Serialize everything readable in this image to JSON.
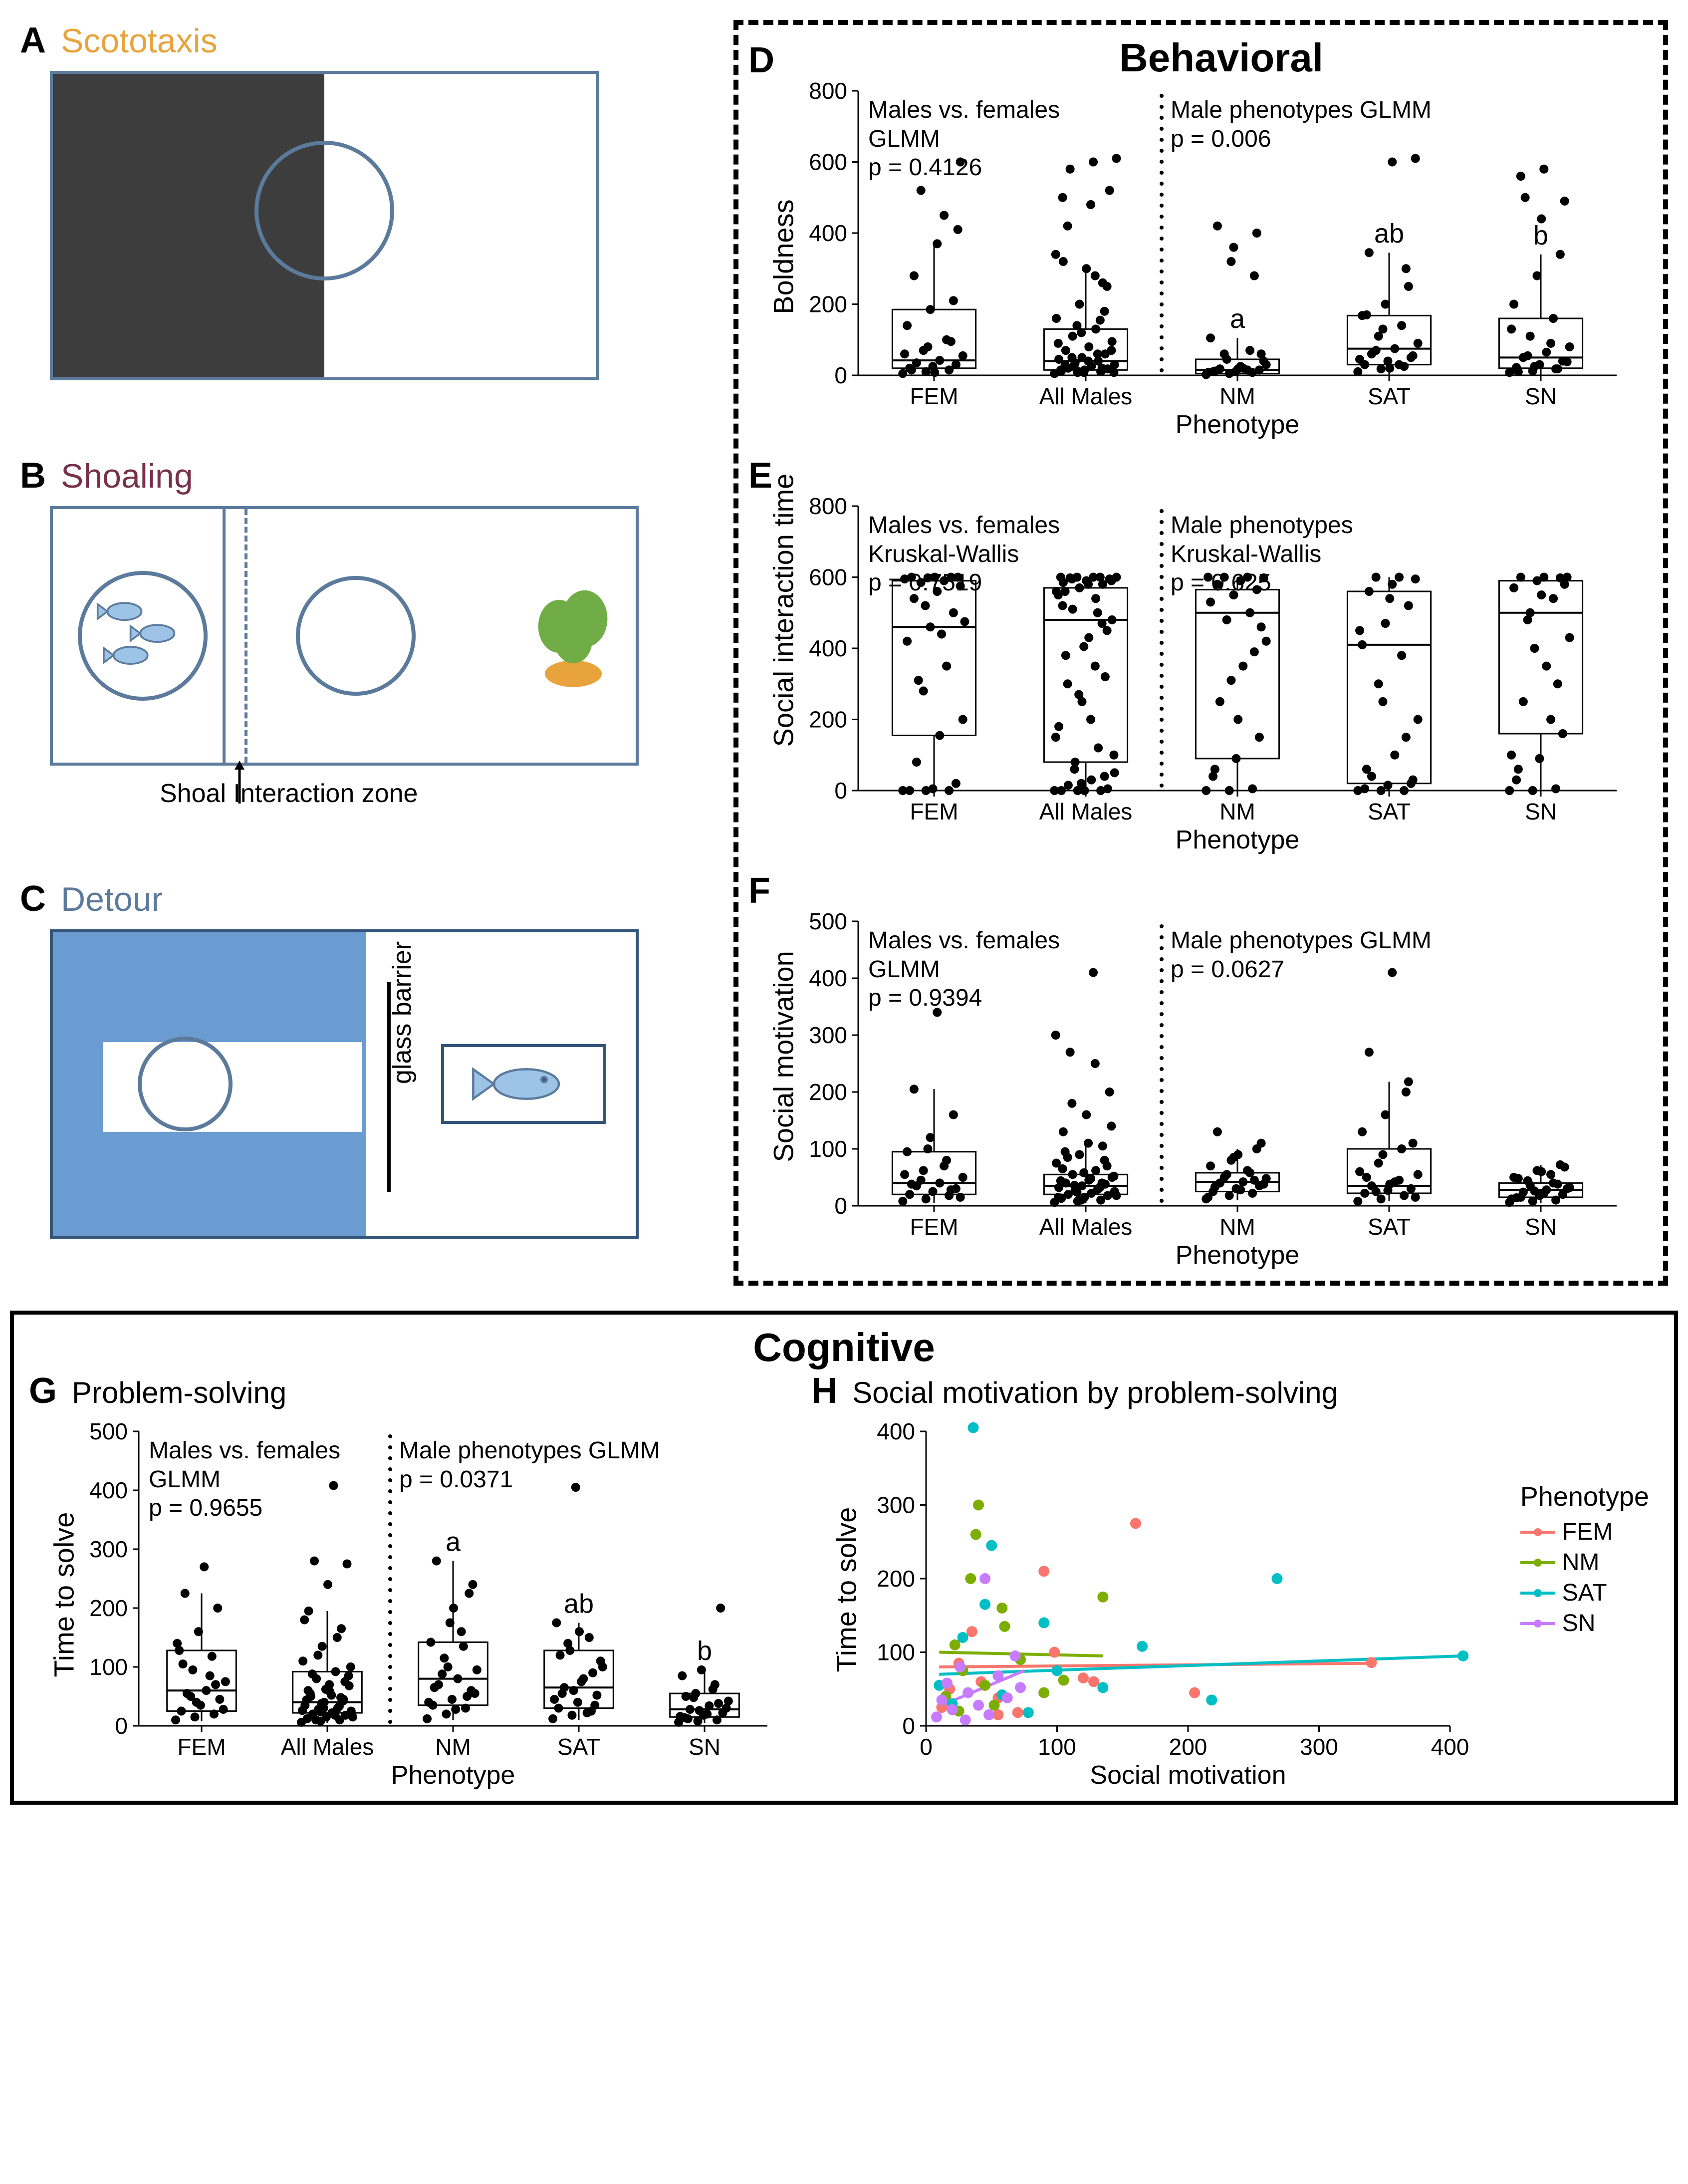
{
  "panels": {
    "A": {
      "label": "A",
      "title": "Scototaxis",
      "title_color": "#e8a33d"
    },
    "B": {
      "label": "B",
      "title": "Shoaling",
      "title_color": "#763049",
      "caption": "Shoal Interaction zone"
    },
    "C": {
      "label": "C",
      "title": "Detour",
      "title_color": "#5b7a9c",
      "barrier_label": "glass barrier"
    },
    "D": {
      "label": "D"
    },
    "E": {
      "label": "E"
    },
    "F": {
      "label": "F"
    },
    "G": {
      "label": "G",
      "title": "Problem-solving"
    },
    "H": {
      "label": "H",
      "title": "Social motivation by problem-solving"
    }
  },
  "sections": {
    "behavioral": "Behavioral",
    "cognitive": "Cognitive"
  },
  "common": {
    "xlabel": "Phenotype",
    "categories5": [
      "FEM",
      "All Males",
      "NM",
      "SAT",
      "SN"
    ]
  },
  "colors": {
    "box_stroke": "#000000",
    "point_fill": "#000000",
    "divider": "#000000",
    "diagram_border": "#5b7a9c",
    "diagram_fill_dark": "#3d3d3d",
    "diagram_fill_blue": "#6a9bd1",
    "background": "#ffffff",
    "grid": "#e6e6e6",
    "phenotypes": {
      "FEM": "#f8766d",
      "NM": "#7cae00",
      "SAT": "#00bfc4",
      "SN": "#c77cff"
    }
  },
  "chartD": {
    "ylabel": "Boldness",
    "ylim": [
      0,
      800
    ],
    "ytick_step": 200,
    "stats_left": "Males vs. females\nGLMM\np = 0.4126",
    "stats_right": "Male phenotypes GLMM\np = 0.006",
    "sig_letters": {
      "NM": "a",
      "SAT": "ab",
      "SN": "b"
    },
    "boxes": [
      {
        "cat": "FEM",
        "q1": 20,
        "median": 42,
        "q3": 185,
        "wmin": 0,
        "wmax": 370
      },
      {
        "cat": "All Males",
        "q1": 15,
        "median": 40,
        "q3": 130,
        "wmin": 0,
        "wmax": 300
      },
      {
        "cat": "NM",
        "q1": 5,
        "median": 15,
        "q3": 45,
        "wmin": 0,
        "wmax": 105
      },
      {
        "cat": "SAT",
        "q1": 30,
        "median": 75,
        "q3": 168,
        "wmin": 0,
        "wmax": 345
      },
      {
        "cat": "SN",
        "q1": 20,
        "median": 50,
        "q3": 160,
        "wmin": 0,
        "wmax": 340
      }
    ],
    "points": {
      "FEM": [
        5,
        10,
        15,
        20,
        25,
        30,
        35,
        42,
        55,
        70,
        100,
        140,
        185,
        210,
        280,
        370,
        600,
        520,
        450,
        60,
        80,
        95,
        15,
        8,
        410
      ],
      "All Males": [
        5,
        8,
        10,
        12,
        15,
        18,
        20,
        25,
        30,
        35,
        40,
        45,
        50,
        60,
        70,
        80,
        95,
        110,
        130,
        160,
        200,
        260,
        320,
        300,
        520,
        580,
        600,
        610,
        140,
        155,
        15,
        8,
        250,
        420,
        480,
        8,
        30,
        60,
        90,
        120,
        180,
        30,
        40,
        70,
        50,
        280,
        340,
        10,
        20,
        500
      ],
      "NM": [
        2,
        5,
        8,
        10,
        12,
        15,
        18,
        20,
        30,
        45,
        70,
        105,
        360,
        400,
        420,
        25,
        40,
        60,
        15,
        8,
        320,
        280,
        12,
        18,
        60
      ],
      "SAT": [
        10,
        18,
        25,
        30,
        40,
        50,
        60,
        75,
        90,
        110,
        140,
        168,
        200,
        250,
        345,
        600,
        610,
        70,
        30,
        45,
        130,
        300,
        170,
        20,
        55
      ],
      "SN": [
        8,
        12,
        18,
        22,
        30,
        40,
        50,
        65,
        80,
        110,
        160,
        200,
        280,
        340,
        560,
        580,
        38,
        55,
        90,
        130,
        25,
        18,
        10,
        440,
        490,
        500
      ]
    }
  },
  "chartE": {
    "ylabel": "Social interaction time",
    "ylim": [
      0,
      800
    ],
    "ytick_step": 200,
    "stats_left": "Males vs. females\nKruskal-Wallis\np = 0.7519",
    "stats_right": "Male phenotypes\nKruskal-Wallis\np = 0.625",
    "boxes": [
      {
        "cat": "FEM",
        "q1": 155,
        "median": 460,
        "q3": 590,
        "wmin": 0,
        "wmax": 600
      },
      {
        "cat": "All Males",
        "q1": 80,
        "median": 480,
        "q3": 570,
        "wmin": 0,
        "wmax": 600
      },
      {
        "cat": "NM",
        "q1": 90,
        "median": 500,
        "q3": 565,
        "wmin": 0,
        "wmax": 600
      },
      {
        "cat": "SAT",
        "q1": 20,
        "median": 410,
        "q3": 560,
        "wmin": 0,
        "wmax": 600
      },
      {
        "cat": "SN",
        "q1": 160,
        "median": 500,
        "q3": 590,
        "wmin": 0,
        "wmax": 600
      }
    ],
    "points": {
      "FEM": [
        0,
        0,
        0,
        0,
        5,
        20,
        80,
        155,
        200,
        280,
        350,
        420,
        460,
        500,
        540,
        560,
        575,
        585,
        590,
        595,
        598,
        600,
        600,
        600,
        600,
        310,
        440,
        475,
        520
      ],
      "All Males": [
        0,
        0,
        0,
        0,
        0,
        5,
        15,
        30,
        50,
        80,
        120,
        180,
        250,
        320,
        380,
        430,
        480,
        510,
        540,
        560,
        570,
        580,
        585,
        590,
        595,
        598,
        600,
        600,
        600,
        600,
        600,
        405,
        450,
        300,
        200,
        100,
        60,
        500,
        550,
        20,
        40,
        560,
        580,
        590,
        595,
        350,
        150,
        270,
        470,
        520
      ],
      "NM": [
        0,
        0,
        5,
        40,
        90,
        150,
        250,
        350,
        420,
        480,
        500,
        530,
        550,
        565,
        580,
        590,
        598,
        600,
        600,
        600,
        310,
        390,
        60,
        200,
        460
      ],
      "SAT": [
        0,
        0,
        0,
        5,
        15,
        20,
        40,
        100,
        200,
        300,
        380,
        410,
        470,
        520,
        560,
        580,
        595,
        600,
        600,
        450,
        250,
        150,
        60,
        540,
        30
      ],
      "SN": [
        0,
        0,
        5,
        30,
        90,
        160,
        250,
        350,
        430,
        500,
        540,
        570,
        590,
        598,
        600,
        600,
        600,
        480,
        200,
        100,
        400,
        300,
        60,
        550,
        580
      ]
    }
  },
  "chartF": {
    "ylabel": "Social motivation",
    "ylim": [
      0,
      500
    ],
    "ytick_step": 100,
    "stats_left": "Males vs. females\nGLMM\np = 0.9394",
    "stats_right": "Male phenotypes GLMM\np = 0.0627",
    "boxes": [
      {
        "cat": "FEM",
        "q1": 20,
        "median": 40,
        "q3": 95,
        "wmin": 5,
        "wmax": 205
      },
      {
        "cat": "All Males",
        "q1": 20,
        "median": 35,
        "q3": 55,
        "wmin": 5,
        "wmax": 105
      },
      {
        "cat": "NM",
        "q1": 25,
        "median": 42,
        "q3": 58,
        "wmin": 10,
        "wmax": 100
      },
      {
        "cat": "SAT",
        "q1": 22,
        "median": 35,
        "q3": 100,
        "wmin": 8,
        "wmax": 218
      },
      {
        "cat": "SN",
        "q1": 15,
        "median": 28,
        "q3": 40,
        "wmin": 5,
        "wmax": 72
      }
    ],
    "points": {
      "FEM": [
        8,
        12,
        18,
        20,
        25,
        30,
        35,
        40,
        50,
        62,
        80,
        95,
        120,
        160,
        205,
        340,
        15,
        45,
        70,
        55,
        100,
        28,
        38
      ],
      "All Males": [
        6,
        8,
        10,
        13,
        15,
        18,
        20,
        22,
        25,
        28,
        30,
        32,
        35,
        38,
        40,
        45,
        50,
        55,
        62,
        75,
        90,
        105,
        130,
        160,
        200,
        270,
        410,
        18,
        24,
        33,
        44,
        58,
        70,
        85,
        48,
        52,
        36,
        29,
        15,
        10,
        80,
        95,
        110,
        140,
        180,
        250,
        300,
        10,
        40,
        65
      ],
      "NM": [
        12,
        18,
        22,
        25,
        30,
        35,
        40,
        42,
        48,
        55,
        58,
        70,
        85,
        100,
        130,
        28,
        38,
        50,
        62,
        15,
        80,
        45,
        33,
        90,
        110
      ],
      "SAT": [
        8,
        12,
        18,
        22,
        27,
        30,
        35,
        42,
        55,
        75,
        100,
        130,
        160,
        218,
        270,
        410,
        15,
        25,
        45,
        60,
        90,
        200,
        50,
        38,
        110
      ],
      "SN": [
        6,
        8,
        10,
        14,
        18,
        20,
        24,
        28,
        32,
        36,
        40,
        50,
        62,
        72,
        15,
        22,
        30,
        44,
        55,
        12,
        26,
        38,
        48,
        60,
        68
      ]
    }
  },
  "chartG": {
    "ylabel": "Time to solve",
    "ylim": [
      0,
      500
    ],
    "ytick_step": 100,
    "stats_left": "Males vs. females\nGLMM\np = 0.9655",
    "stats_right": "Male phenotypes GLMM\np = 0.0371",
    "sig_letters": {
      "NM": "a",
      "SAT": "ab",
      "SN": "b"
    },
    "boxes": [
      {
        "cat": "FEM",
        "q1": 25,
        "median": 60,
        "q3": 128,
        "wmin": 8,
        "wmax": 225
      },
      {
        "cat": "All Males",
        "q1": 22,
        "median": 40,
        "q3": 92,
        "wmin": 5,
        "wmax": 195
      },
      {
        "cat": "NM",
        "q1": 35,
        "median": 80,
        "q3": 142,
        "wmin": 10,
        "wmax": 280
      },
      {
        "cat": "SAT",
        "q1": 30,
        "median": 65,
        "q3": 128,
        "wmin": 10,
        "wmax": 175
      },
      {
        "cat": "SN",
        "q1": 15,
        "median": 28,
        "q3": 55,
        "wmin": 5,
        "wmax": 95
      }
    ],
    "points": {
      "FEM": [
        10,
        15,
        20,
        25,
        35,
        45,
        55,
        60,
        75,
        95,
        118,
        128,
        160,
        200,
        225,
        270,
        28,
        50,
        85,
        140,
        40,
        70,
        105
      ],
      "All Males": [
        6,
        8,
        10,
        12,
        15,
        18,
        20,
        22,
        25,
        28,
        30,
        35,
        40,
        45,
        50,
        58,
        68,
        80,
        92,
        110,
        135,
        165,
        195,
        240,
        275,
        280,
        408,
        15,
        24,
        33,
        44,
        62,
        75,
        88,
        52,
        100,
        120,
        150,
        180,
        30,
        42,
        55,
        70,
        85,
        10,
        18,
        26,
        38,
        48,
        60
      ],
      "NM": [
        12,
        20,
        30,
        35,
        45,
        60,
        70,
        80,
        95,
        115,
        135,
        142,
        175,
        225,
        280,
        28,
        55,
        88,
        160,
        40,
        100,
        50,
        65,
        200,
        240
      ],
      "SAT": [
        12,
        18,
        25,
        30,
        40,
        52,
        65,
        80,
        100,
        128,
        150,
        175,
        405,
        35,
        55,
        75,
        110,
        140,
        22,
        45,
        60,
        90,
        120,
        160
      ],
      "SN": [
        6,
        8,
        10,
        14,
        18,
        22,
        28,
        34,
        42,
        55,
        70,
        85,
        95,
        200,
        12,
        20,
        30,
        48,
        62,
        16,
        26,
        38,
        50
      ]
    }
  },
  "chartH": {
    "xlabel": "Social motivation",
    "ylabel": "Time to solve",
    "xlim": [
      0,
      400
    ],
    "xtick_step": 100,
    "ylim": [
      0,
      400
    ],
    "ytick_step": 100,
    "legend_title": "Phenotype",
    "legend_items": [
      "FEM",
      "NM",
      "SAT",
      "SN"
    ],
    "lines": {
      "FEM": {
        "x1": 10,
        "y1": 80,
        "x2": 340,
        "y2": 85
      },
      "NM": {
        "x1": 10,
        "y1": 100,
        "x2": 135,
        "y2": 95
      },
      "SAT": {
        "x1": 10,
        "y1": 70,
        "x2": 410,
        "y2": 95
      },
      "SN": {
        "x1": 8,
        "y1": 25,
        "x2": 75,
        "y2": 75
      }
    },
    "points": [
      {
        "p": "FEM",
        "x": 12,
        "y": 25
      },
      {
        "p": "FEM",
        "x": 18,
        "y": 50
      },
      {
        "p": "FEM",
        "x": 25,
        "y": 85
      },
      {
        "p": "FEM",
        "x": 35,
        "y": 128
      },
      {
        "p": "FEM",
        "x": 42,
        "y": 60
      },
      {
        "p": "FEM",
        "x": 55,
        "y": 38
      },
      {
        "p": "FEM",
        "x": 70,
        "y": 18
      },
      {
        "p": "FEM",
        "x": 98,
        "y": 100
      },
      {
        "p": "FEM",
        "x": 120,
        "y": 65
      },
      {
        "p": "FEM",
        "x": 160,
        "y": 275
      },
      {
        "p": "FEM",
        "x": 205,
        "y": 45
      },
      {
        "p": "FEM",
        "x": 340,
        "y": 86
      },
      {
        "p": "FEM",
        "x": 128,
        "y": 60
      },
      {
        "p": "FEM",
        "x": 55,
        "y": 15
      },
      {
        "p": "FEM",
        "x": 90,
        "y": 210
      },
      {
        "p": "NM",
        "x": 15,
        "y": 40
      },
      {
        "p": "NM",
        "x": 22,
        "y": 110
      },
      {
        "p": "NM",
        "x": 28,
        "y": 75
      },
      {
        "p": "NM",
        "x": 34,
        "y": 200
      },
      {
        "p": "NM",
        "x": 40,
        "y": 300
      },
      {
        "p": "NM",
        "x": 45,
        "y": 55
      },
      {
        "p": "NM",
        "x": 52,
        "y": 28
      },
      {
        "p": "NM",
        "x": 60,
        "y": 135
      },
      {
        "p": "NM",
        "x": 72,
        "y": 90
      },
      {
        "p": "NM",
        "x": 90,
        "y": 45
      },
      {
        "p": "NM",
        "x": 105,
        "y": 62
      },
      {
        "p": "NM",
        "x": 135,
        "y": 175
      },
      {
        "p": "NM",
        "x": 38,
        "y": 260
      },
      {
        "p": "NM",
        "x": 25,
        "y": 20
      },
      {
        "p": "NM",
        "x": 58,
        "y": 160
      },
      {
        "p": "SAT",
        "x": 10,
        "y": 55
      },
      {
        "p": "SAT",
        "x": 20,
        "y": 30
      },
      {
        "p": "SAT",
        "x": 28,
        "y": 120
      },
      {
        "p": "SAT",
        "x": 36,
        "y": 405
      },
      {
        "p": "SAT",
        "x": 45,
        "y": 165
      },
      {
        "p": "SAT",
        "x": 58,
        "y": 42
      },
      {
        "p": "SAT",
        "x": 78,
        "y": 18
      },
      {
        "p": "SAT",
        "x": 100,
        "y": 75
      },
      {
        "p": "SAT",
        "x": 135,
        "y": 52
      },
      {
        "p": "SAT",
        "x": 165,
        "y": 108
      },
      {
        "p": "SAT",
        "x": 218,
        "y": 35
      },
      {
        "p": "SAT",
        "x": 268,
        "y": 200
      },
      {
        "p": "SAT",
        "x": 410,
        "y": 95
      },
      {
        "p": "SAT",
        "x": 50,
        "y": 245
      },
      {
        "p": "SAT",
        "x": 90,
        "y": 140
      },
      {
        "p": "SN",
        "x": 8,
        "y": 12
      },
      {
        "p": "SN",
        "x": 12,
        "y": 35
      },
      {
        "p": "SN",
        "x": 16,
        "y": 58
      },
      {
        "p": "SN",
        "x": 20,
        "y": 22
      },
      {
        "p": "SN",
        "x": 26,
        "y": 80
      },
      {
        "p": "SN",
        "x": 32,
        "y": 45
      },
      {
        "p": "SN",
        "x": 40,
        "y": 28
      },
      {
        "p": "SN",
        "x": 48,
        "y": 15
      },
      {
        "p": "SN",
        "x": 55,
        "y": 68
      },
      {
        "p": "SN",
        "x": 62,
        "y": 38
      },
      {
        "p": "SN",
        "x": 72,
        "y": 52
      },
      {
        "p": "SN",
        "x": 68,
        "y": 95
      },
      {
        "p": "SN",
        "x": 45,
        "y": 200
      },
      {
        "p": "SN",
        "x": 30,
        "y": 8
      }
    ]
  }
}
